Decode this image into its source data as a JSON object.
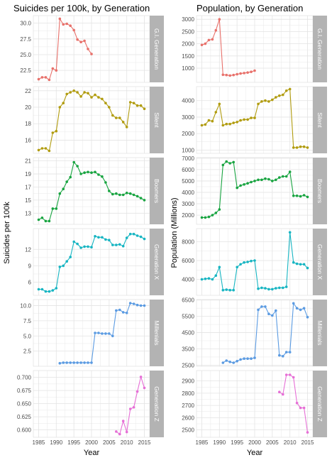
{
  "colors": {
    "panel_bg": "#ffffff",
    "grid": "#e3e3e3",
    "strip": "#b3b3b3",
    "series": [
      "#e8716b",
      "#b19c0f",
      "#18a440",
      "#17b5c2",
      "#5b9be2",
      "#e66fd6"
    ]
  },
  "chart_data": [
    {
      "type": "line",
      "title": "Suicides per 100k, by Generation",
      "xlabel": "Year",
      "ylabel": "Suicides per 100k",
      "x_ticks": [
        1985,
        1990,
        1995,
        2000,
        2005,
        2010,
        2015
      ],
      "grid": true,
      "legend": "none",
      "facets": [
        {
          "name": "G.I. Generation",
          "ylim": [
            20.6,
            31.2
          ],
          "y_ticks": [
            "22.5",
            "25.0",
            "27.5",
            "30.0"
          ],
          "x": [
            1985,
            1986,
            1987,
            1988,
            1989,
            1990,
            1991,
            1992,
            1993,
            1994,
            1995,
            1996,
            1997,
            1998,
            1999,
            2000
          ],
          "values": [
            21.1,
            21.4,
            21.4,
            21.0,
            22.8,
            22.5,
            30.7,
            29.8,
            29.9,
            29.6,
            28.9,
            27.4,
            27.0,
            27.2,
            25.9,
            25.1
          ]
        },
        {
          "name": "Silent",
          "ylim": [
            14.4,
            22.5
          ],
          "y_ticks": [
            "16",
            "18",
            "20",
            "22"
          ],
          "x": [
            1985,
            1986,
            1987,
            1988,
            1989,
            1990,
            1991,
            1992,
            1993,
            1994,
            1995,
            1996,
            1997,
            1998,
            1999,
            2000,
            2001,
            2002,
            2003,
            2004,
            2005,
            2006,
            2007,
            2008,
            2009,
            2010,
            2011,
            2012,
            2013,
            2014,
            2015
          ],
          "values": [
            14.8,
            15.0,
            15.0,
            14.7,
            16.9,
            17.1,
            20.0,
            20.5,
            21.6,
            21.8,
            22.0,
            21.8,
            21.3,
            21.8,
            21.7,
            21.2,
            21.5,
            21.2,
            21.0,
            20.5,
            20.0,
            19.0,
            18.7,
            18.7,
            18.2,
            17.6,
            20.6,
            20.5,
            20.2,
            20.2,
            19.8
          ]
        },
        {
          "name": "Boomers",
          "ylim": [
            11.3,
            21.5
          ],
          "y_ticks": [
            "13",
            "15",
            "17",
            "19",
            "21"
          ],
          "x": [
            1985,
            1986,
            1987,
            1988,
            1989,
            1990,
            1991,
            1992,
            1993,
            1994,
            1995,
            1996,
            1997,
            1998,
            1999,
            2000,
            2001,
            2002,
            2003,
            2004,
            2005,
            2006,
            2007,
            2008,
            2009,
            2010,
            2011,
            2012,
            2013,
            2014,
            2015
          ],
          "values": [
            12.0,
            12.3,
            11.8,
            11.8,
            13.7,
            13.7,
            16.0,
            16.7,
            17.8,
            18.5,
            20.8,
            20.2,
            19.0,
            19.2,
            19.3,
            19.2,
            19.3,
            18.9,
            18.6,
            17.7,
            16.4,
            15.9,
            16.0,
            15.8,
            15.8,
            16.1,
            16.0,
            15.8,
            15.6,
            15.3,
            15.0
          ]
        },
        {
          "name": "Generation X",
          "ylim": [
            3.6,
            15.8
          ],
          "y_ticks": [
            "6",
            "9",
            "12"
          ],
          "x": [
            1985,
            1986,
            1987,
            1988,
            1989,
            1990,
            1991,
            1992,
            1993,
            1994,
            1995,
            1996,
            1997,
            1998,
            1999,
            2000,
            2001,
            2002,
            2003,
            2004,
            2005,
            2006,
            2007,
            2008,
            2009,
            2010,
            2011,
            2012,
            2013,
            2014,
            2015
          ],
          "values": [
            4.7,
            4.7,
            4.3,
            4.3,
            4.5,
            4.9,
            8.8,
            9.0,
            9.8,
            10.6,
            13.4,
            13.0,
            12.3,
            12.5,
            12.5,
            12.4,
            14.4,
            14.2,
            14.2,
            13.8,
            13.7,
            12.8,
            12.8,
            12.9,
            12.6,
            14.1,
            14.8,
            14.8,
            14.5,
            14.3,
            13.9
          ]
        },
        {
          "name": "Millenials",
          "ylim": [
            0,
            11.0
          ],
          "y_ticks": [
            "2.5",
            "5.0",
            "7.5",
            "10.0"
          ],
          "x": [
            1991,
            1992,
            1993,
            1994,
            1995,
            1996,
            1997,
            1998,
            1999,
            2000,
            2001,
            2002,
            2003,
            2004,
            2005,
            2006,
            2007,
            2008,
            2009,
            2010,
            2011,
            2012,
            2013,
            2014,
            2015
          ],
          "values": [
            0.5,
            0.6,
            0.6,
            0.6,
            0.6,
            0.6,
            0.6,
            0.6,
            0.6,
            0.6,
            5.5,
            5.5,
            5.4,
            5.4,
            5.4,
            5.0,
            9.2,
            9.3,
            8.9,
            8.8,
            10.4,
            10.3,
            10.1,
            10.0,
            10.0
          ]
        },
        {
          "name": "Generation Z",
          "ylim": [
            0.586,
            0.713
          ],
          "y_ticks": [
            "0.600",
            "0.625",
            "0.650",
            "0.675",
            "0.700"
          ],
          "x": [
            2007,
            2008,
            2009,
            2010,
            2011,
            2012,
            2013,
            2014,
            2015
          ],
          "values": [
            0.597,
            0.592,
            0.617,
            0.596,
            0.64,
            0.643,
            0.673,
            0.701,
            0.68
          ]
        }
      ]
    },
    {
      "type": "line",
      "title": "Population, by Generation",
      "xlabel": "Year",
      "ylabel": "Population (Millions)",
      "x_ticks": [
        1985,
        1990,
        1995,
        2000,
        2005,
        2010,
        2015
      ],
      "grid": true,
      "legend": "none",
      "facets": [
        {
          "name": "G.I. Generation",
          "ylim": [
            420,
            3150
          ],
          "y_ticks": [
            "1000",
            "1500",
            "2000",
            "2500",
            "3000"
          ],
          "x": [
            1985,
            1986,
            1987,
            1988,
            1989,
            1990,
            1991,
            1992,
            1993,
            1994,
            1995,
            1996,
            1997,
            1998,
            1999,
            2000
          ],
          "values": [
            1950,
            2000,
            2150,
            2180,
            2550,
            3000,
            730,
            720,
            700,
            720,
            750,
            780,
            800,
            820,
            850,
            900
          ]
        },
        {
          "name": "Silent",
          "ylim": [
            800,
            4850
          ],
          "y_ticks": [
            "1000",
            "2000",
            "3000",
            "4000"
          ],
          "x": [
            1985,
            1986,
            1987,
            1988,
            1989,
            1990,
            1991,
            1992,
            1993,
            1994,
            1995,
            1996,
            1997,
            1998,
            1999,
            2000,
            2001,
            2002,
            2003,
            2004,
            2005,
            2006,
            2007,
            2008,
            2009,
            2010,
            2011,
            2012,
            2013,
            2014,
            2015
          ],
          "values": [
            2500,
            2550,
            2800,
            2750,
            3300,
            3800,
            2500,
            2580,
            2580,
            2650,
            2700,
            2800,
            2850,
            2850,
            2950,
            2950,
            3800,
            3950,
            4000,
            3950,
            4050,
            4200,
            4300,
            4350,
            4600,
            4700,
            1150,
            1150,
            1200,
            1200,
            1150
          ]
        },
        {
          "name": "Boomers",
          "ylim": [
            1200,
            7050
          ],
          "y_ticks": [
            "2000",
            "3000",
            "4000",
            "5000",
            "6000",
            "7000"
          ],
          "x": [
            1985,
            1986,
            1987,
            1988,
            1989,
            1990,
            1991,
            1992,
            1993,
            1994,
            1995,
            1996,
            1997,
            1998,
            1999,
            2000,
            2001,
            2002,
            2003,
            2004,
            2005,
            2006,
            2007,
            2008,
            2009,
            2010,
            2011,
            2012,
            2013,
            2014,
            2015
          ],
          "values": [
            1800,
            1800,
            1850,
            2000,
            2200,
            2500,
            6400,
            6700,
            6550,
            6650,
            4400,
            4600,
            4700,
            4800,
            4900,
            5000,
            5100,
            5100,
            5200,
            5150,
            5000,
            5100,
            5300,
            5400,
            5400,
            5800,
            3700,
            3700,
            3650,
            3750,
            3600
          ]
        },
        {
          "name": "Generation X",
          "ylim": [
            2300,
            9400
          ],
          "y_ticks": [
            "4000",
            "6000",
            "8000"
          ],
          "x": [
            1985,
            1986,
            1987,
            1988,
            1989,
            1990,
            1991,
            1992,
            1993,
            1994,
            1995,
            1996,
            1997,
            1998,
            1999,
            2000,
            2001,
            2002,
            2003,
            2004,
            2005,
            2006,
            2007,
            2008,
            2009,
            2010,
            2011,
            2012,
            2013,
            2014,
            2015
          ],
          "values": [
            4000,
            4050,
            4100,
            4000,
            4400,
            5300,
            2850,
            2900,
            2850,
            2850,
            5300,
            5600,
            5800,
            5850,
            5950,
            6000,
            3000,
            3100,
            3050,
            2950,
            2950,
            3050,
            3100,
            3100,
            3200,
            9000,
            5800,
            5650,
            5600,
            5600,
            5200
          ]
        },
        {
          "name": "Millenials",
          "ylim": [
            2430,
            6530
          ],
          "y_ticks": [
            "2500",
            "3500",
            "4500",
            "5500",
            "6500"
          ],
          "x": [
            1991,
            1992,
            1993,
            1994,
            1995,
            1996,
            1997,
            1998,
            1999,
            2000,
            2001,
            2002,
            2003,
            2004,
            2005,
            2006,
            2007,
            2008,
            2009,
            2010,
            2011,
            2012,
            2013,
            2014,
            2015
          ],
          "values": [
            2650,
            2780,
            2700,
            2650,
            2750,
            2850,
            2900,
            2900,
            2900,
            2950,
            5900,
            6100,
            6100,
            5650,
            5550,
            5850,
            3100,
            3050,
            3300,
            3300,
            6300,
            6000,
            5900,
            6000,
            5450
          ]
        },
        {
          "name": "Generation Z",
          "ylim": [
            2440,
            2985
          ],
          "y_ticks": [
            "2500",
            "2600",
            "2700",
            "2800",
            "2900"
          ],
          "x": [
            2007,
            2008,
            2009,
            2010,
            2011,
            2012,
            2013,
            2014,
            2015
          ],
          "values": [
            2810,
            2790,
            2950,
            2950,
            2930,
            2720,
            2680,
            2680,
            2480
          ]
        }
      ]
    }
  ]
}
